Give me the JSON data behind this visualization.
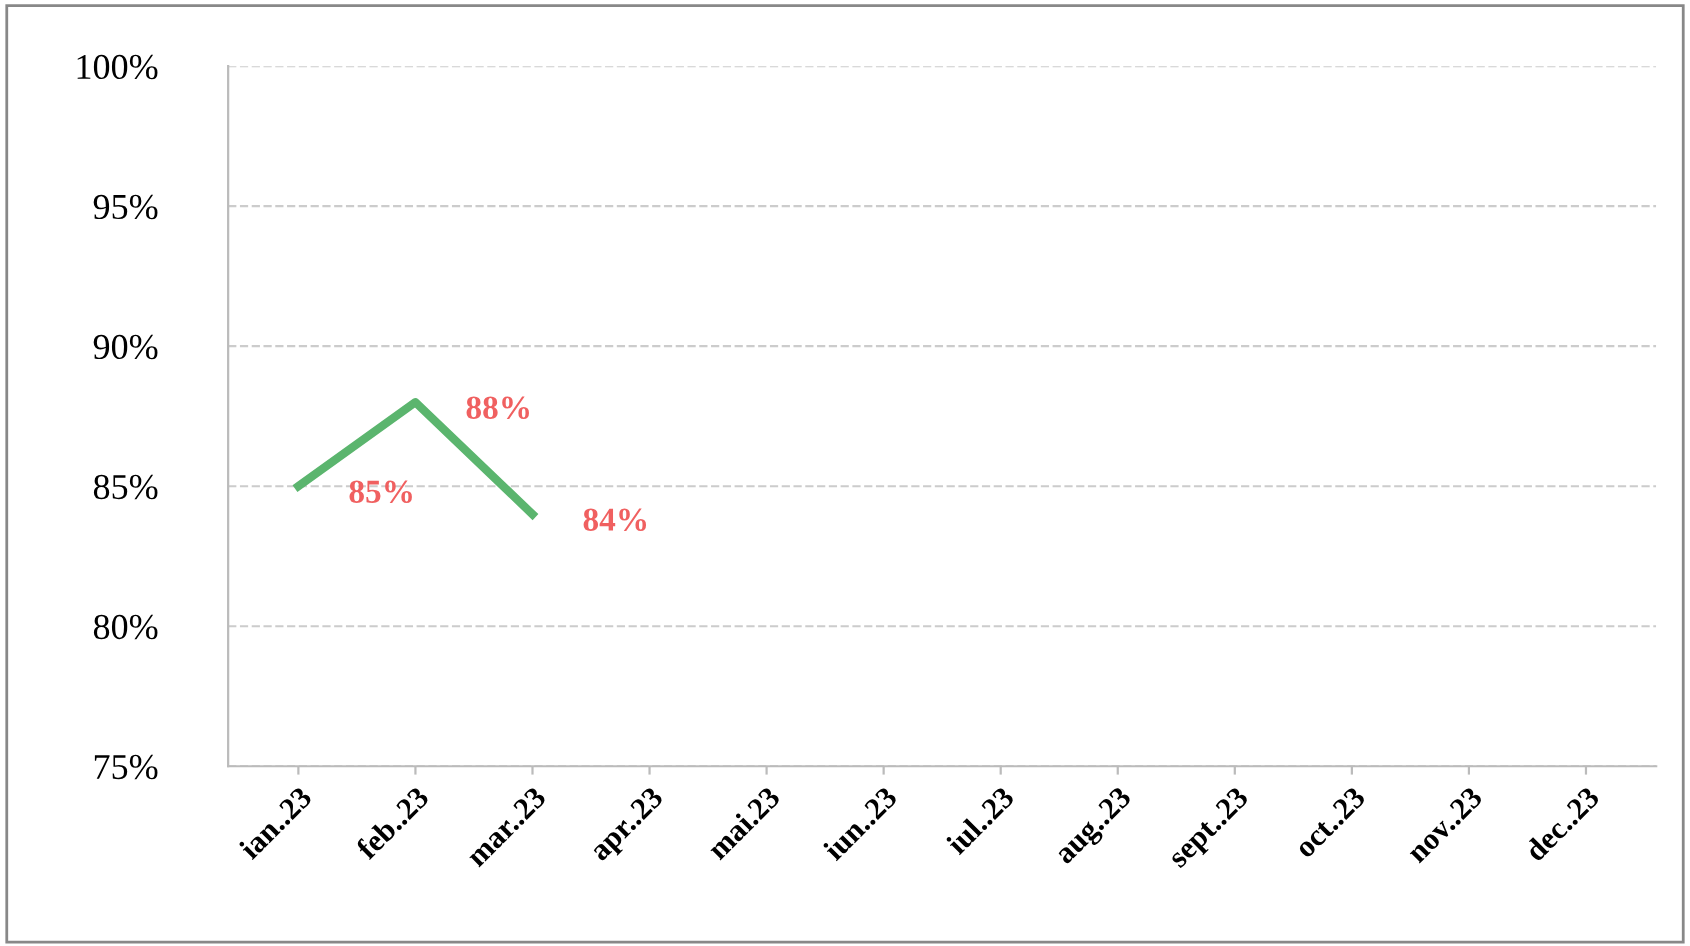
{
  "chart_data": {
    "type": "line",
    "categories": [
      "ian..23",
      "feb..23",
      "mar..23",
      "apr..23",
      "mai.23",
      "iun..23",
      "iul..23",
      "aug..23",
      "sept..23",
      "oct..23",
      "nov..23",
      "dec..23"
    ],
    "series": [
      {
        "color": "#5bb56e",
        "values": [
          85,
          88,
          84,
          null,
          null,
          null,
          null,
          null,
          null,
          null,
          null,
          null
        ],
        "value_labels": [
          "85%",
          "88%",
          "84%",
          null,
          null,
          null,
          null,
          null,
          null,
          null,
          null,
          null
        ]
      }
    ],
    "ylim": [
      75,
      100
    ],
    "yticks": [
      {
        "value": 75,
        "label": "75%"
      },
      {
        "value": 80,
        "label": "80%"
      },
      {
        "value": 85,
        "label": "85%"
      },
      {
        "value": 90,
        "label": "90%"
      },
      {
        "value": 95,
        "label": "95%"
      },
      {
        "value": 100,
        "label": "100%"
      }
    ],
    "grid": "y",
    "legend": false,
    "marker": "none",
    "line_style": "solid"
  }
}
